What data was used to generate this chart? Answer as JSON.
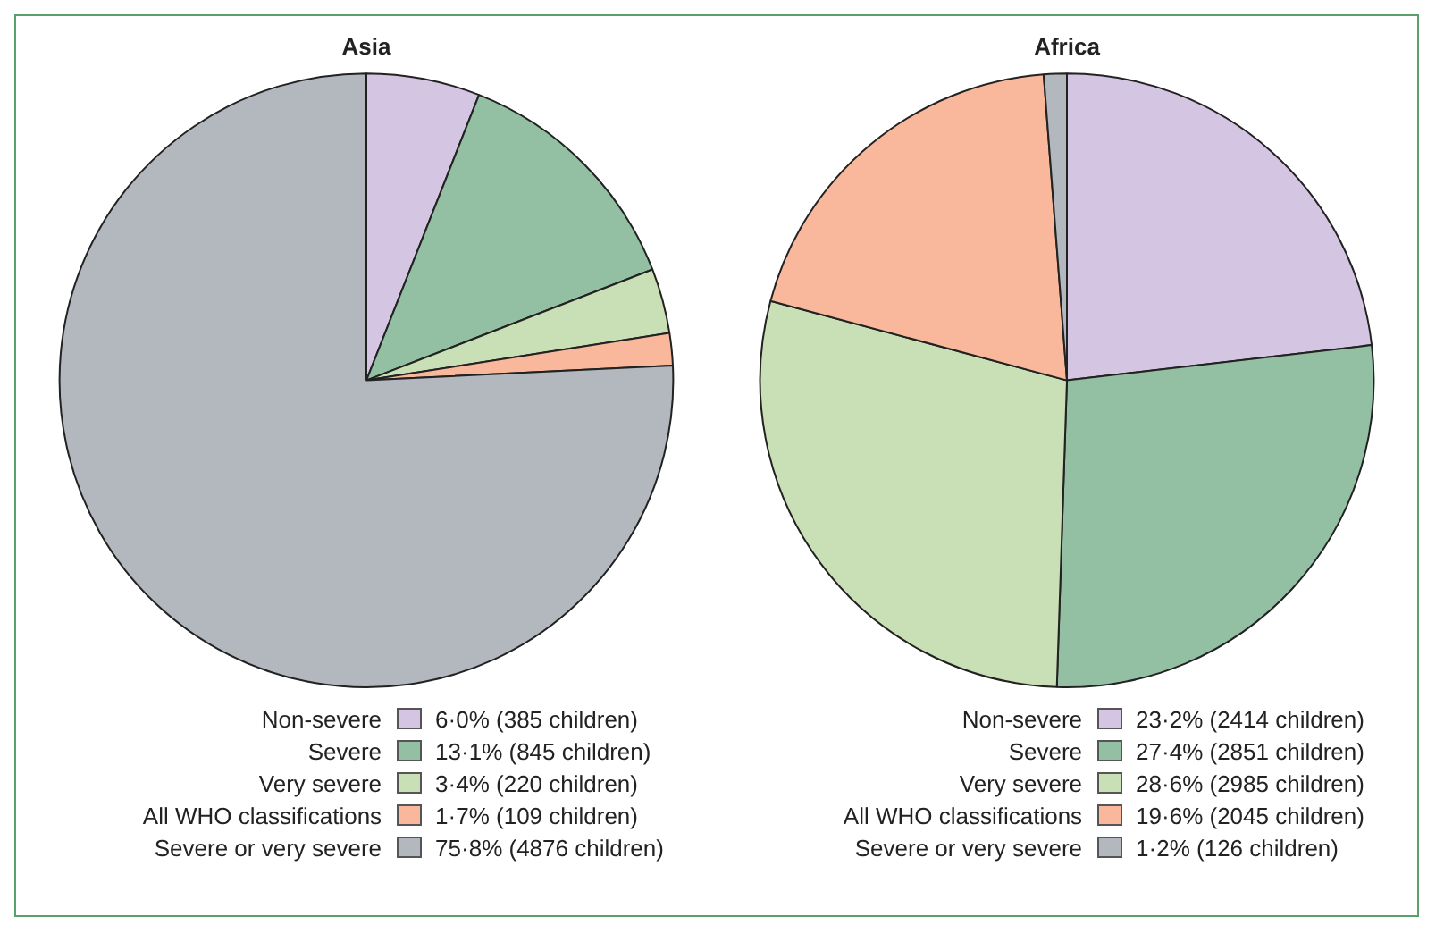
{
  "chart_data": [
    {
      "type": "pie",
      "title": "Asia",
      "categories": [
        "Non-severe",
        "Severe",
        "Very severe",
        "All WHO classifications",
        "Severe or very severe"
      ],
      "values": [
        385,
        845,
        220,
        109,
        4876
      ],
      "value_labels": [
        "6·0% (385 children)",
        "13·1% (845 children)",
        "3·4% (220 children)",
        "1·7% (109 children)",
        "75·8% (4876 children)"
      ],
      "colors": [
        "#d4c5e2",
        "#93bfa3",
        "#c9e0b6",
        "#f9b89b",
        "#b2b8be"
      ],
      "legend": "bottom"
    },
    {
      "type": "pie",
      "title": "Africa",
      "categories": [
        "Non-severe",
        "Severe",
        "Very severe",
        "All WHO classifications",
        "Severe or very severe"
      ],
      "values": [
        2414,
        2851,
        2985,
        2045,
        126
      ],
      "value_labels": [
        "23·2% (2414 children)",
        "27·4% (2851 children)",
        "28·6% (2985 children)",
        "19·6% (2045 children)",
        "1·2% (126 children)"
      ],
      "colors": [
        "#d4c5e2",
        "#93bfa3",
        "#c9e0b6",
        "#f9b89b",
        "#b2b8be"
      ],
      "legend": "bottom"
    }
  ]
}
